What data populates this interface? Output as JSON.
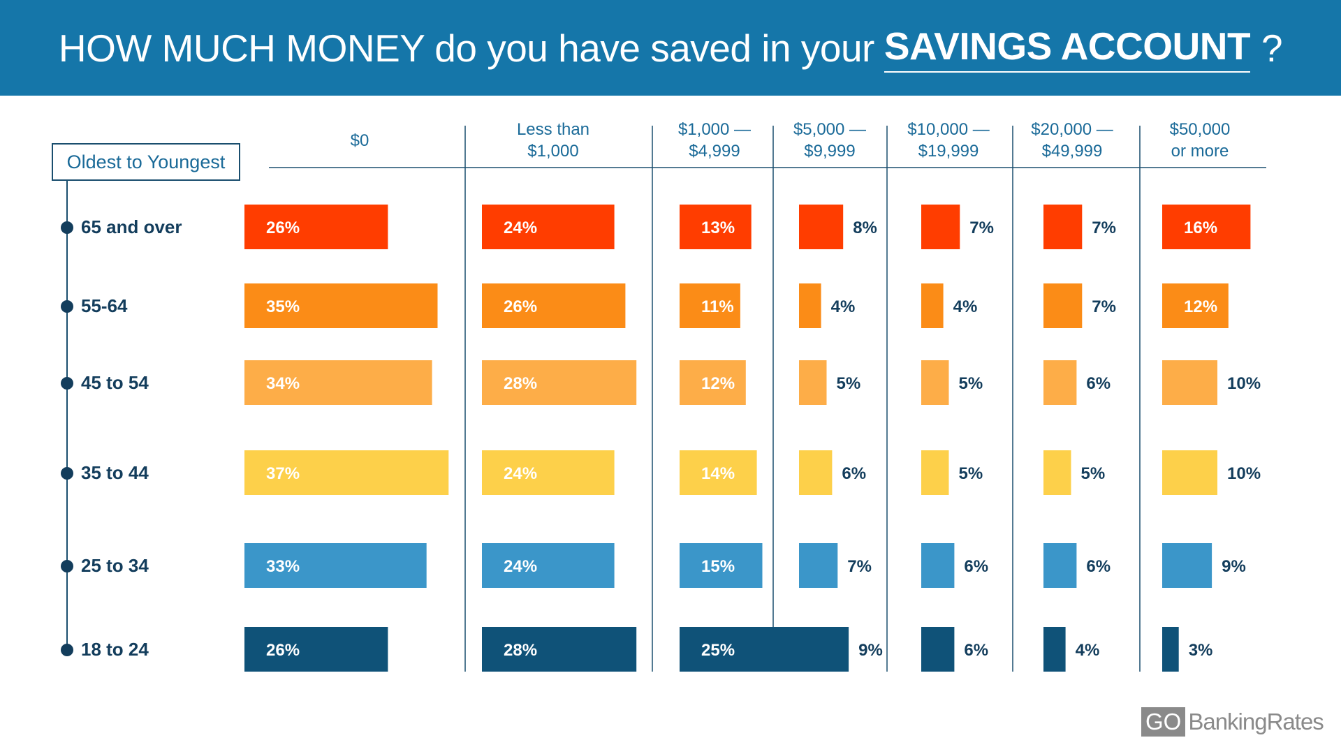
{
  "header": {
    "title_pre": "HOW MUCH MONEY do you have saved in your",
    "title_strong": "SAVINGS ACCOUNT",
    "title_post": "?"
  },
  "legend_box": "Oldest to Youngest",
  "brand": {
    "go": "GO",
    "rest": "BankingRates"
  },
  "colors": {
    "banner": "#1576a9",
    "header_text": "#1a6a98",
    "row_label": "#133d5c",
    "divider": "#1a4e6e",
    "row_colors": [
      "#ff3d00",
      "#fb8c17",
      "#fdad48",
      "#fdd04a",
      "#3b96c9",
      "#0f5278"
    ]
  },
  "chart_data": {
    "type": "bar",
    "categories": [
      "$0",
      "Less than $1,000",
      "$1,000 — $4,999",
      "$5,000 — $9,999",
      "$10,000 — $19,999",
      "$20,000 — $49,999",
      "$50,000 or more"
    ],
    "category_lines": [
      [
        "$0"
      ],
      [
        "Less than",
        "$1,000"
      ],
      [
        "$1,000 —",
        "$4,999"
      ],
      [
        "$5,000 —",
        "$9,999"
      ],
      [
        "$10,000 —",
        "$19,999"
      ],
      [
        "$20,000 —",
        "$49,999"
      ],
      [
        "$50,000",
        "or more"
      ]
    ],
    "series": [
      {
        "name": "65 and over",
        "values": [
          26,
          24,
          13,
          8,
          7,
          7,
          16
        ]
      },
      {
        "name": "55-64",
        "values": [
          35,
          26,
          11,
          4,
          4,
          7,
          12
        ]
      },
      {
        "name": "45 to 54",
        "values": [
          34,
          28,
          12,
          5,
          5,
          6,
          10
        ]
      },
      {
        "name": "35 to 44",
        "values": [
          37,
          24,
          14,
          6,
          5,
          5,
          10
        ]
      },
      {
        "name": "25 to 34",
        "values": [
          33,
          24,
          15,
          7,
          6,
          6,
          9
        ]
      },
      {
        "name": "18 to 24",
        "values": [
          26,
          28,
          25,
          9,
          6,
          4,
          3
        ]
      }
    ],
    "value_suffix": "%"
  }
}
